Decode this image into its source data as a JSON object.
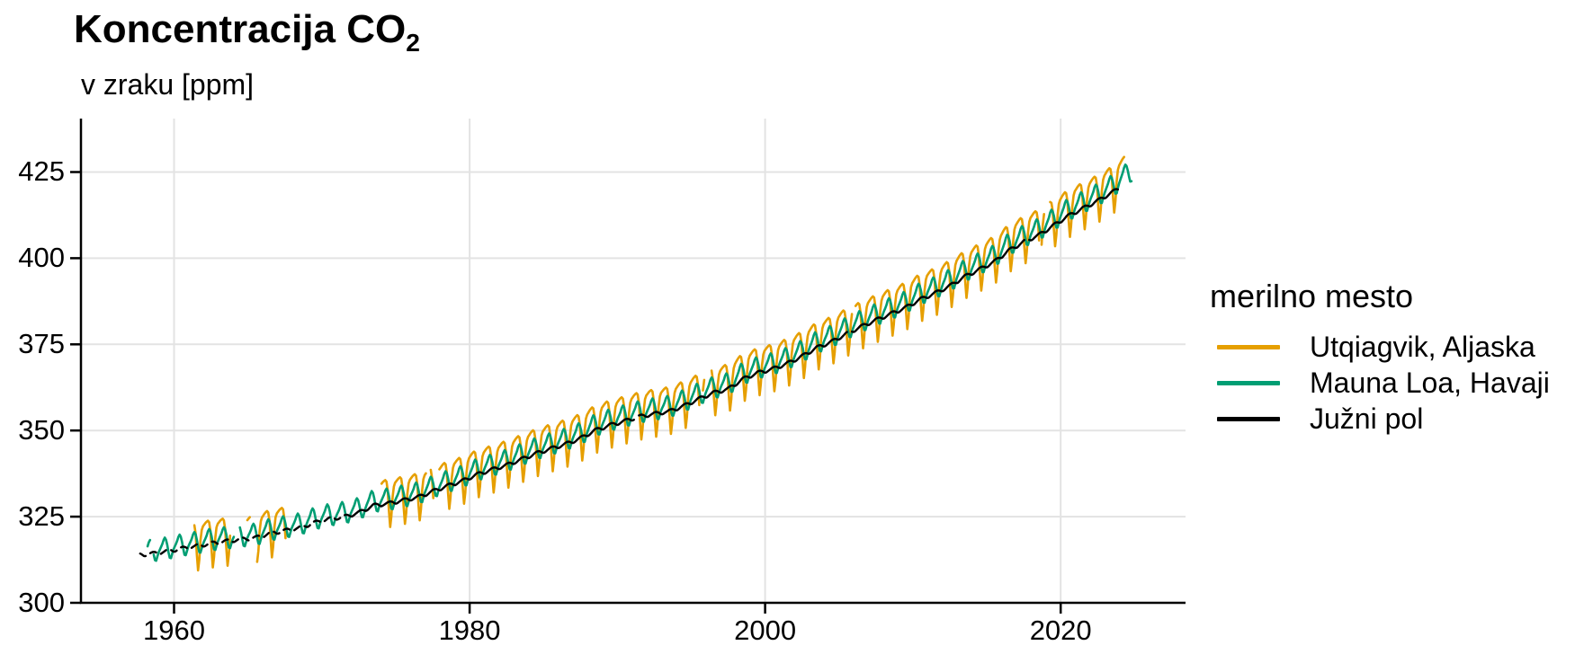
{
  "title": {
    "text": "Koncentracija CO",
    "subscript": "2"
  },
  "subtitle": "v zraku [ppm]",
  "colors": {
    "background": "#ffffff",
    "grid": "#e3e3e3",
    "axis": "#000000",
    "text": "#000000"
  },
  "chart_data": {
    "type": "line",
    "title": "Koncentracija CO₂",
    "subtitle": "v zraku [ppm]",
    "xlabel": "",
    "ylabel": "v zraku [ppm]",
    "grid": true,
    "legend_position": "right",
    "legend_title": "merilno mesto",
    "x_ticks": [
      1960,
      1980,
      2000,
      2020
    ],
    "y_ticks": [
      300,
      325,
      350,
      375,
      400,
      425
    ],
    "x_range": [
      1953.7,
      2028.45
    ],
    "y_range": [
      300,
      440.5
    ],
    "series": [
      {
        "name": "Utqiagvik, Aljaska",
        "color": "#E69F00",
        "line_width": 2.6,
        "start_year": 1961,
        "annual_means": [
          318.9,
          319.8,
          320.3,
          320.9,
          321.3,
          322.7,
          323.5,
          324.3,
          325.9,
          327.0,
          327.6,
          328.8,
          331.0,
          331.5,
          332.4,
          333.3,
          335.1,
          336.7,
          338.1,
          340.1,
          341.4,
          342.8,
          344.5,
          346.2,
          347.6,
          348.9,
          350.6,
          353.0,
          354.5,
          355.7,
          356.9,
          357.7,
          358.4,
          360.1,
          362.1,
          363.9,
          365.0,
          368.0,
          369.7,
          370.8,
          372.4,
          374.5,
          377.1,
          378.8,
          381.1,
          383.2,
          385.1,
          386.9,
          388.7,
          391.2,
          392.9,
          395.1,
          397.8,
          399.9,
          402.1,
          405.5,
          407.9,
          409.8,
          412.7,
          415.5,
          417.7,
          419.9,
          422.4,
          425.9
        ],
        "seasonal_offsets": [
          3.3,
          3.7,
          4.0,
          4.2,
          3.7,
          1.2,
          -4.8,
          -9.6,
          -6.5,
          -1.0,
          1.9,
          2.9
        ],
        "segments": [
          {
            "from": 1961.37,
            "to": 1963.85,
            "dash": false
          },
          {
            "from": 1964.95,
            "to": 1965.2,
            "dash": false
          },
          {
            "from": 1965.55,
            "to": 1967.6,
            "dash": false
          },
          {
            "from": 1974.0,
            "to": 1977.1,
            "dash": false
          },
          {
            "from": 1977.35,
            "to": 1977.55,
            "dash": false
          },
          {
            "from": 1977.9,
            "to": 1995.6,
            "dash": false
          },
          {
            "from": 1995.75,
            "to": 1995.95,
            "dash": false
          },
          {
            "from": 1996.3,
            "to": 2005.9,
            "dash": false
          },
          {
            "from": 2006.1,
            "to": 2018.55,
            "dash": false
          },
          {
            "from": 2018.7,
            "to": 2018.95,
            "dash": false
          },
          {
            "from": 2019.25,
            "to": 2024.37,
            "dash": false
          }
        ]
      },
      {
        "name": "Mauna Loa, Havaji",
        "color": "#009E73",
        "line_width": 2.6,
        "start_year": 1958,
        "annual_means": [
          315.3,
          316.0,
          316.9,
          317.6,
          318.5,
          319.0,
          319.6,
          320.0,
          321.4,
          322.2,
          323.0,
          324.6,
          325.7,
          326.3,
          327.5,
          329.7,
          330.2,
          331.1,
          332.0,
          333.8,
          335.4,
          336.8,
          338.8,
          340.1,
          341.5,
          343.2,
          344.9,
          346.3,
          347.6,
          349.3,
          351.7,
          353.2,
          354.4,
          355.6,
          356.4,
          357.1,
          358.8,
          360.8,
          362.6,
          363.7,
          366.7,
          368.4,
          369.5,
          371.1,
          373.2,
          375.8,
          377.5,
          379.8,
          381.9,
          383.8,
          385.6,
          387.4,
          389.9,
          391.6,
          393.8,
          396.5,
          398.6,
          400.8,
          404.2,
          406.6,
          408.5,
          411.4,
          414.2,
          416.4,
          418.6,
          421.1,
          424.6
        ],
        "seasonal_offsets": [
          -0.2,
          0.5,
          1.3,
          2.4,
          3.0,
          2.3,
          0.7,
          -1.4,
          -3.1,
          -3.3,
          -2.1,
          -1.0
        ],
        "segments": [
          {
            "from": 1958.2,
            "to": 1958.42,
            "dash": false
          },
          {
            "from": 1958.58,
            "to": 1964.12,
            "dash": false
          },
          {
            "from": 1964.38,
            "to": 2024.87,
            "dash": false
          }
        ]
      },
      {
        "name": "Južni pol",
        "color": "#000000",
        "line_width": 2.4,
        "start_year": 1957,
        "annual_means": [
          313.8,
          314.2,
          314.9,
          315.7,
          316.4,
          317.2,
          317.8,
          318.4,
          318.8,
          320.1,
          320.9,
          321.7,
          323.2,
          324.3,
          324.9,
          326.1,
          328.2,
          328.8,
          329.7,
          330.6,
          332.3,
          333.9,
          335.3,
          337.2,
          338.6,
          339.9,
          341.6,
          343.3,
          344.7,
          346.0,
          347.7,
          350.0,
          351.5,
          352.7,
          354.0,
          354.8,
          355.5,
          357.1,
          359.1,
          360.9,
          362.0,
          364.9,
          366.7,
          367.8,
          369.4,
          371.5,
          374.0,
          375.7,
          378.0,
          380.1,
          382.0,
          383.8,
          385.6,
          388.0,
          389.8,
          391.9,
          394.6,
          396.7,
          398.9,
          402.2,
          404.7,
          406.6,
          409.4,
          412.2,
          414.4,
          416.6,
          419.1
        ],
        "seasonal_offsets": [
          -0.5,
          -0.4,
          -0.2,
          0.0,
          0.2,
          0.4,
          0.5,
          0.5,
          0.4,
          0.2,
          -0.1,
          -0.4
        ],
        "segments": [
          {
            "from": 1957.7,
            "to": 1971.95,
            "dash": true
          },
          {
            "from": 1971.95,
            "to": 1991.2,
            "dash": false
          },
          {
            "from": 1991.45,
            "to": 2005.6,
            "dash": false
          },
          {
            "from": 2005.85,
            "to": 2017.55,
            "dash": false
          },
          {
            "from": 2017.8,
            "to": 2023.9,
            "dash": false
          }
        ]
      }
    ]
  }
}
